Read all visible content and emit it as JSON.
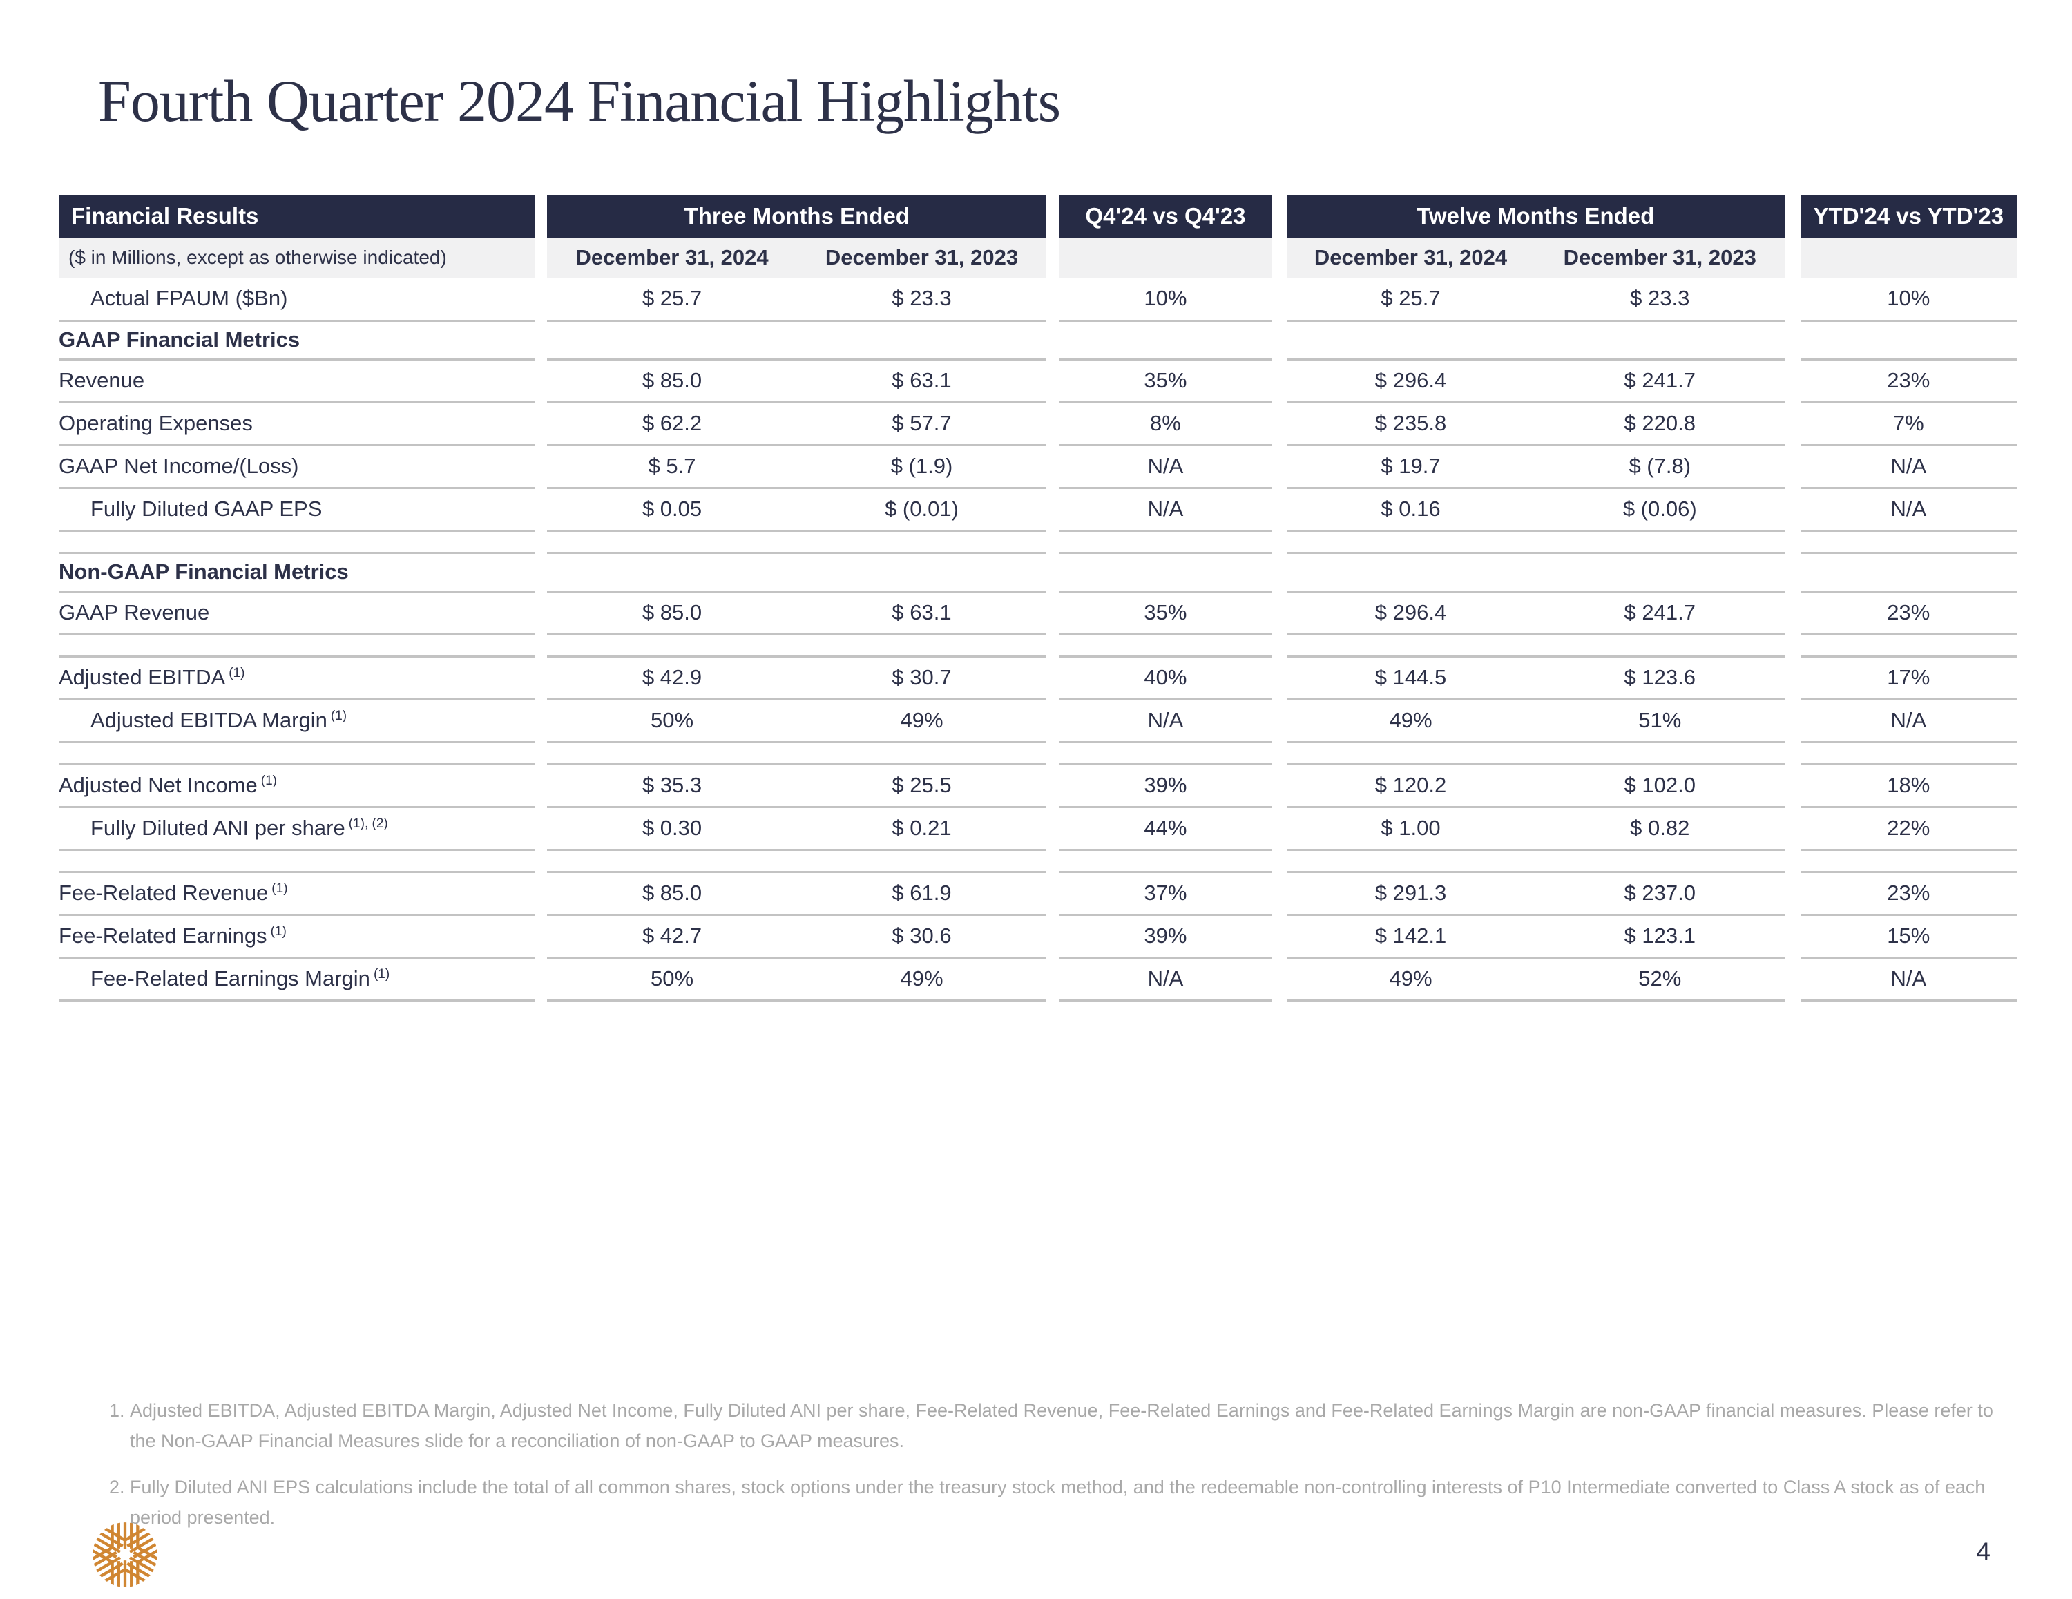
{
  "slide": {
    "title": "Fourth Quarter 2024 Financial Highlights",
    "page_number": "4"
  },
  "colors": {
    "navy": "#2d3148",
    "header_bg": "#262b45",
    "subheader_bg": "#f1f1f2",
    "grid_line": "#c3c3c3",
    "footnote_gray": "#a8a8a8",
    "logo_orange": "#d08632"
  },
  "table": {
    "headers": {
      "financial_results": "Financial Results",
      "three_months": "Three Months Ended",
      "q4_vs": "Q4'24 vs Q4'23",
      "twelve_months": "Twelve Months Ended",
      "ytd_vs": "YTD'24 vs YTD'23",
      "units_note": "($ in Millions, except as otherwise indicated)",
      "col_2024": "December 31, 2024",
      "col_2023": "December 31, 2023"
    },
    "rows": [
      {
        "type": "data",
        "label": "Actual FPAUM ($Bn)",
        "indent": true,
        "values": [
          "$ 25.7",
          "$ 23.3",
          "10%",
          "$ 25.7",
          "$ 23.3",
          "10%"
        ]
      },
      {
        "type": "section",
        "label": "GAAP Financial Metrics"
      },
      {
        "type": "data",
        "label": "Revenue",
        "values": [
          "$ 85.0",
          "$ 63.1",
          "35%",
          "$ 296.4",
          "$ 241.7",
          "23%"
        ]
      },
      {
        "type": "data",
        "label": "Operating Expenses",
        "values": [
          "$ 62.2",
          "$ 57.7",
          "8%",
          "$ 235.8",
          "$ 220.8",
          "7%"
        ]
      },
      {
        "type": "data",
        "label": "GAAP Net Income/(Loss)",
        "values": [
          "$ 5.7",
          "$ (1.9)",
          "N/A",
          "$ 19.7",
          "$ (7.8)",
          "N/A"
        ]
      },
      {
        "type": "data",
        "label": "Fully Diluted GAAP EPS",
        "indent": true,
        "values": [
          "$ 0.05",
          "$ (0.01)",
          "N/A",
          "$ 0.16",
          "$ (0.06)",
          "N/A"
        ]
      },
      {
        "type": "spacer"
      },
      {
        "type": "section",
        "label": "Non-GAAP Financial Metrics"
      },
      {
        "type": "data",
        "label": "GAAP Revenue",
        "values": [
          "$ 85.0",
          "$ 63.1",
          "35%",
          "$ 296.4",
          "$ 241.7",
          "23%"
        ]
      },
      {
        "type": "spacer"
      },
      {
        "type": "data",
        "label": "Adjusted EBITDA",
        "sup": "(1)",
        "values": [
          "$ 42.9",
          "$ 30.7",
          "40%",
          "$ 144.5",
          "$ 123.6",
          "17%"
        ]
      },
      {
        "type": "data",
        "label": "Adjusted EBITDA Margin",
        "sup": "(1)",
        "indent": true,
        "values": [
          "50%",
          "49%",
          "N/A",
          "49%",
          "51%",
          "N/A"
        ]
      },
      {
        "type": "spacer"
      },
      {
        "type": "data",
        "label": "Adjusted Net Income",
        "sup": "(1)",
        "values": [
          "$ 35.3",
          "$ 25.5",
          "39%",
          "$ 120.2",
          "$ 102.0",
          "18%"
        ]
      },
      {
        "type": "data",
        "label": "Fully Diluted ANI per share",
        "sup": "(1), (2)",
        "indent": true,
        "values": [
          "$ 0.30",
          "$ 0.21",
          "44%",
          "$ 1.00",
          "$ 0.82",
          "22%"
        ]
      },
      {
        "type": "spacer"
      },
      {
        "type": "data",
        "label": "Fee-Related Revenue",
        "sup": "(1)",
        "values": [
          "$ 85.0",
          "$ 61.9",
          "37%",
          "$ 291.3",
          "$ 237.0",
          "23%"
        ]
      },
      {
        "type": "data",
        "label": "Fee-Related Earnings",
        "sup": "(1)",
        "values": [
          "$ 42.7",
          "$ 30.6",
          "39%",
          "$ 142.1",
          "$ 123.1",
          "15%"
        ]
      },
      {
        "type": "data",
        "label": "Fee-Related Earnings Margin",
        "sup": "(1)",
        "indent": true,
        "values": [
          "50%",
          "49%",
          "N/A",
          "49%",
          "52%",
          "N/A"
        ]
      }
    ]
  },
  "footnotes": [
    "Adjusted EBITDA, Adjusted EBITDA Margin, Adjusted Net Income, Fully Diluted ANI per share, Fee-Related Revenue, Fee-Related Earnings and Fee-Related Earnings Margin are non-GAAP financial measures. Please refer to the Non-GAAP Financial Measures slide for a reconciliation of non-GAAP to GAAP measures.",
    "Fully Diluted ANI EPS calculations include the total of all common shares, stock options under the treasury stock method, and the redeemable non-controlling interests of P10 Intermediate converted to Class A stock as of each period presented."
  ]
}
